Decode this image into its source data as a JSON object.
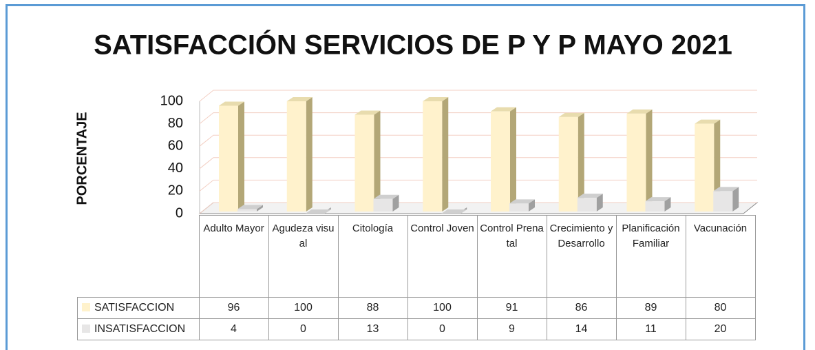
{
  "chart_data": {
    "type": "bar3d",
    "title": "SATISFACCIÓN SERVICIOS DE P Y P MAYO 2021",
    "y_label": "PORCENTAJE",
    "categories": [
      "Adulto Mayor",
      "Agudeza visual",
      "Citología",
      "Control Joven",
      "Control Prenatal",
      "Crecimiento y Desarrollo",
      "Planificación Familiar",
      "Vacunación"
    ],
    "series": [
      {
        "name": "SATISFACCION",
        "color": "#fff2cc",
        "values": [
          96,
          100,
          88,
          100,
          91,
          86,
          89,
          80
        ]
      },
      {
        "name": "INSATISFACCION",
        "color": "#e7e6e6",
        "values": [
          4,
          0,
          13,
          0,
          9,
          14,
          11,
          20
        ]
      }
    ],
    "ylim": [
      0,
      100
    ],
    "yticks": [
      0,
      20,
      40,
      60,
      80,
      100
    ],
    "grid": true
  }
}
